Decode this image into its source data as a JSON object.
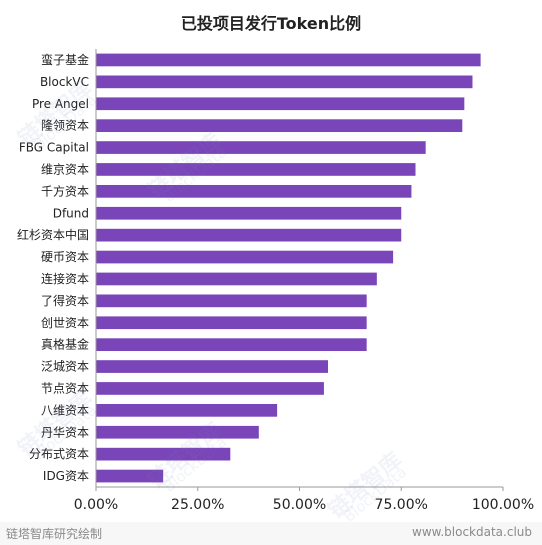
{
  "chart_data": {
    "type": "bar",
    "orientation": "horizontal",
    "title": "已投项目发行Token比例",
    "categories": [
      "蛮子基金",
      "BlockVC",
      "Pre Angel",
      "隆领资本",
      "FBG Capital",
      "维京资本",
      "千方资本",
      "Dfund",
      "红杉资本中国",
      "硬币资本",
      "连接资本",
      "了得资本",
      "创世资本",
      "真格基金",
      "泛城资本",
      "节点资本",
      "八维资本",
      "丹华资本",
      "分布式资本",
      "IDG资本"
    ],
    "values": [
      94.5,
      92.5,
      90.5,
      90.0,
      81.0,
      78.5,
      77.5,
      75.0,
      75.0,
      73.0,
      69.0,
      66.5,
      66.5,
      66.5,
      57.0,
      56.0,
      44.5,
      40.0,
      33.0,
      16.5
    ],
    "x_ticks": [
      "0.00%",
      "25.00%",
      "50.00%",
      "75.00%",
      "100.00%"
    ],
    "xlim": [
      0,
      100
    ],
    "bar_color": "#7a45b8",
    "grid": false,
    "legend": "none"
  },
  "footer": {
    "left": "链塔智库研究绘制",
    "right": "www.blockdata.club"
  },
  "watermark": {
    "cn": "链塔智库",
    "en": "BlockData"
  }
}
